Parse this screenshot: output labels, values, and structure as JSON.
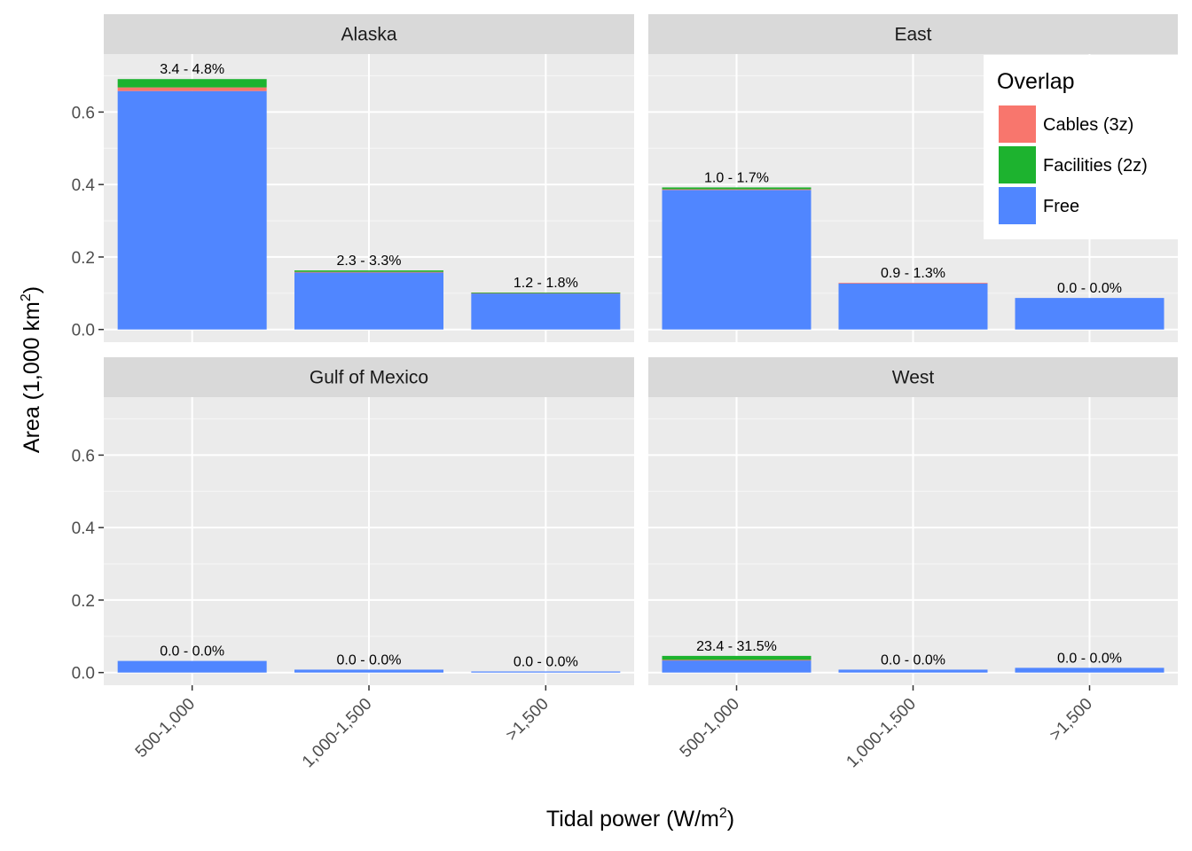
{
  "chart_data": {
    "type": "bar",
    "stacked": true,
    "xlabel": "Tidal power (W/m",
    "xlabel_sup": "2",
    "xlabel_suffix": ")",
    "ylabel": "Area (1,000 km",
    "ylabel_sup": "2",
    "ylabel_suffix": ")",
    "categories": [
      "500-1,000",
      "1,000-1,500",
      ">1,500"
    ],
    "ylim": [
      -0.035,
      0.76
    ],
    "yticks": [
      0.0,
      0.2,
      0.4,
      0.6
    ],
    "ytick_labels": [
      "0.0",
      "0.2",
      "0.4",
      "0.6"
    ],
    "grid": true,
    "legend": {
      "title": "Overlap",
      "position": "top-right",
      "items": [
        {
          "name": "Cables (3z)",
          "color": "#F8766D"
        },
        {
          "name": "Facilities (2z)",
          "color": "#1DB32F"
        },
        {
          "name": "Free",
          "color": "#5086FF"
        }
      ]
    },
    "panels": [
      {
        "name": "Alaska",
        "show_yticks": true,
        "show_xticks": false,
        "series": [
          {
            "name": "Free",
            "values": [
              0.658,
              0.158,
              0.1
            ]
          },
          {
            "name": "Cables (3z)",
            "values": [
              0.01,
              0.001,
              0.001
            ]
          },
          {
            "name": "Facilities (2z)",
            "values": [
              0.023,
              0.004,
              0.001
            ]
          }
        ],
        "bar_labels": [
          "3.4 - 4.8%",
          "2.3 - 3.3%",
          "1.2 - 1.8%"
        ]
      },
      {
        "name": "East",
        "show_yticks": false,
        "show_xticks": false,
        "series": [
          {
            "name": "Free",
            "values": [
              0.385,
              0.127,
              0.087
            ]
          },
          {
            "name": "Cables (3z)",
            "values": [
              0.002,
              0.002,
              0.0
            ]
          },
          {
            "name": "Facilities (2z)",
            "values": [
              0.005,
              0.0,
              0.0
            ]
          }
        ],
        "bar_labels": [
          "1.0 - 1.7%",
          "0.9 - 1.3%",
          "0.0 - 0.0%"
        ]
      },
      {
        "name": "Gulf of Mexico",
        "show_yticks": true,
        "show_xticks": true,
        "series": [
          {
            "name": "Free",
            "values": [
              0.032,
              0.008,
              0.003
            ]
          },
          {
            "name": "Cables (3z)",
            "values": [
              0.0,
              0.0,
              0.0
            ]
          },
          {
            "name": "Facilities (2z)",
            "values": [
              0.0,
              0.0,
              0.0
            ]
          }
        ],
        "bar_labels": [
          "0.0 - 0.0%",
          "0.0 - 0.0%",
          "0.0 - 0.0%"
        ]
      },
      {
        "name": "West",
        "show_yticks": false,
        "show_xticks": true,
        "series": [
          {
            "name": "Free",
            "values": [
              0.034,
              0.008,
              0.013
            ]
          },
          {
            "name": "Cables (3z)",
            "values": [
              0.001,
              0.0,
              0.0
            ]
          },
          {
            "name": "Facilities (2z)",
            "values": [
              0.011,
              0.0,
              0.0
            ]
          }
        ],
        "bar_labels": [
          "23.4 - 31.5%",
          "0.0 - 0.0%",
          "0.0 - 0.0%"
        ]
      }
    ]
  }
}
